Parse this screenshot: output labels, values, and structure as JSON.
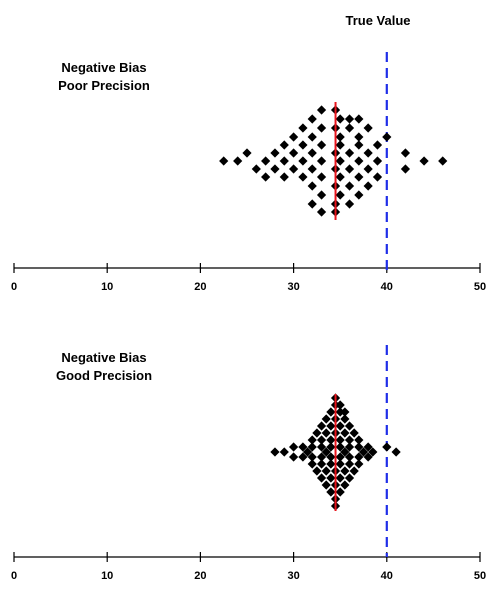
{
  "true_value_label": "True Value",
  "chart_data": [
    {
      "type": "scatter",
      "title_lines": [
        "Negative Bias",
        "Poor Precision"
      ],
      "xlim": [
        0,
        50
      ],
      "ticks": [
        0,
        10,
        20,
        30,
        40,
        50
      ],
      "true_value": 40,
      "mean": 34.5,
      "points": [
        [
          33,
          110
        ],
        [
          34.5,
          110
        ],
        [
          32,
          119
        ],
        [
          35,
          119
        ],
        [
          36,
          119
        ],
        [
          37,
          119
        ],
        [
          31,
          128
        ],
        [
          33,
          128
        ],
        [
          34.5,
          128
        ],
        [
          36,
          128
        ],
        [
          38,
          128
        ],
        [
          30,
          137
        ],
        [
          32,
          137
        ],
        [
          35,
          137
        ],
        [
          37,
          137
        ],
        [
          40,
          137
        ],
        [
          29,
          145
        ],
        [
          31,
          145
        ],
        [
          33,
          145
        ],
        [
          35,
          145
        ],
        [
          37,
          145
        ],
        [
          39,
          145
        ],
        [
          25,
          153
        ],
        [
          28,
          153
        ],
        [
          30,
          153
        ],
        [
          32,
          153
        ],
        [
          34.5,
          153
        ],
        [
          36,
          153
        ],
        [
          38,
          153
        ],
        [
          42,
          153
        ],
        [
          22.5,
          161
        ],
        [
          24,
          161
        ],
        [
          27,
          161
        ],
        [
          29,
          161
        ],
        [
          31,
          161
        ],
        [
          33,
          161
        ],
        [
          35,
          161
        ],
        [
          37,
          161
        ],
        [
          39,
          161
        ],
        [
          44,
          161
        ],
        [
          46,
          161
        ],
        [
          26,
          169
        ],
        [
          28,
          169
        ],
        [
          30,
          169
        ],
        [
          32,
          169
        ],
        [
          34.5,
          169
        ],
        [
          36,
          169
        ],
        [
          38,
          169
        ],
        [
          42,
          169
        ],
        [
          27,
          177
        ],
        [
          29,
          177
        ],
        [
          31,
          177
        ],
        [
          33,
          177
        ],
        [
          35,
          177
        ],
        [
          37,
          177
        ],
        [
          39,
          177
        ],
        [
          32,
          186
        ],
        [
          34.5,
          186
        ],
        [
          36,
          186
        ],
        [
          38,
          186
        ],
        [
          33,
          195
        ],
        [
          35,
          195
        ],
        [
          37,
          195
        ],
        [
          32,
          204
        ],
        [
          34.5,
          204
        ],
        [
          36,
          204
        ],
        [
          33,
          212
        ],
        [
          34.5,
          212
        ]
      ]
    },
    {
      "type": "scatter",
      "title_lines": [
        "Negative Bias",
        "Good Precision"
      ],
      "xlim": [
        0,
        50
      ],
      "ticks": [
        0,
        10,
        20,
        30,
        40,
        50
      ],
      "true_value": 40,
      "mean": 34.5,
      "points": [
        [
          34.5,
          398
        ],
        [
          34.5,
          405
        ],
        [
          35,
          405
        ],
        [
          34,
          412
        ],
        [
          35,
          412
        ],
        [
          35.5,
          412
        ],
        [
          33.5,
          419
        ],
        [
          34.5,
          419
        ],
        [
          35.5,
          419
        ],
        [
          33,
          426
        ],
        [
          34,
          426
        ],
        [
          35,
          426
        ],
        [
          36,
          426
        ],
        [
          32.5,
          433
        ],
        [
          33.5,
          433
        ],
        [
          34.5,
          433
        ],
        [
          35.5,
          433
        ],
        [
          36.5,
          433
        ],
        [
          32,
          440
        ],
        [
          33,
          440
        ],
        [
          34,
          440
        ],
        [
          35,
          440
        ],
        [
          36,
          440
        ],
        [
          37,
          440
        ],
        [
          30,
          447
        ],
        [
          31,
          447
        ],
        [
          32,
          447
        ],
        [
          33,
          447
        ],
        [
          34,
          447
        ],
        [
          35,
          447
        ],
        [
          36,
          447
        ],
        [
          37,
          447
        ],
        [
          38,
          447
        ],
        [
          40,
          447
        ],
        [
          28,
          452
        ],
        [
          29,
          452
        ],
        [
          31.5,
          452
        ],
        [
          33.5,
          452
        ],
        [
          35.5,
          452
        ],
        [
          37.5,
          452
        ],
        [
          38.5,
          452
        ],
        [
          41,
          452
        ],
        [
          30,
          457
        ],
        [
          31,
          457
        ],
        [
          32,
          457
        ],
        [
          33,
          457
        ],
        [
          34,
          457
        ],
        [
          35,
          457
        ],
        [
          36,
          457
        ],
        [
          37,
          457
        ],
        [
          38,
          457
        ],
        [
          32,
          464
        ],
        [
          33,
          464
        ],
        [
          34,
          464
        ],
        [
          35,
          464
        ],
        [
          36,
          464
        ],
        [
          37,
          464
        ],
        [
          32.5,
          471
        ],
        [
          33.5,
          471
        ],
        [
          34.5,
          471
        ],
        [
          35.5,
          471
        ],
        [
          36.5,
          471
        ],
        [
          33,
          478
        ],
        [
          34,
          478
        ],
        [
          35,
          478
        ],
        [
          36,
          478
        ],
        [
          33.5,
          485
        ],
        [
          34.5,
          485
        ],
        [
          35.5,
          485
        ],
        [
          34,
          492
        ],
        [
          35,
          492
        ],
        [
          34.5,
          499
        ],
        [
          34.5,
          506
        ]
      ]
    }
  ]
}
